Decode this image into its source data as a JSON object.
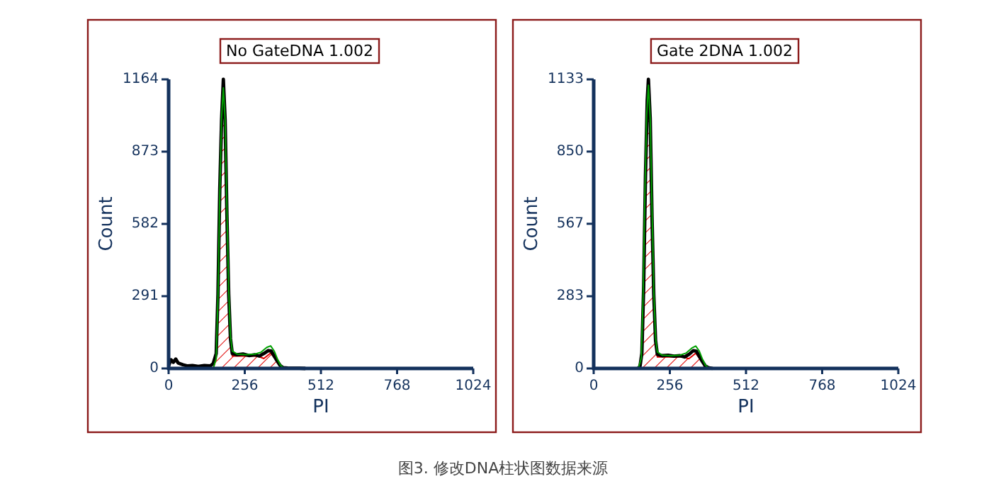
{
  "chart_data": [
    {
      "type": "line",
      "title": "No GateDNA 1.002",
      "xlabel": "PI",
      "ylabel": "Count",
      "xlim": [
        0,
        1024
      ],
      "xticks": [
        0,
        256,
        512,
        768,
        1024
      ],
      "ylim": [
        0,
        1164
      ],
      "yticks": [
        0,
        291,
        582,
        873,
        1164
      ],
      "annotations": [
        "图3. 修改DNA柱状图数据来源"
      ],
      "series": [
        {
          "type": "area",
          "color": "#e00000",
          "x": [
            150,
            160,
            166,
            172,
            178,
            184,
            190,
            196,
            202,
            208,
            214,
            300,
            320,
            343,
            360,
            380
          ],
          "values": [
            0,
            40,
            290,
            700,
            1010,
            1130,
            1000,
            650,
            320,
            120,
            50,
            50,
            40,
            62,
            35,
            0
          ]
        },
        {
          "color": "#000000",
          "x": [
            0,
            8,
            16,
            24,
            32,
            48,
            64,
            80,
            100,
            120,
            140,
            150,
            160,
            166,
            172,
            178,
            184,
            190,
            196,
            202,
            208,
            214,
            230,
            250,
            270,
            290,
            305,
            320,
            335,
            345,
            355,
            365,
            375,
            385,
            400,
            440,
            460
          ],
          "values": [
            10,
            35,
            25,
            38,
            22,
            15,
            10,
            12,
            8,
            12,
            10,
            20,
            60,
            300,
            720,
            1000,
            1164,
            1000,
            620,
            300,
            120,
            60,
            55,
            58,
            52,
            55,
            50,
            60,
            72,
            70,
            50,
            30,
            12,
            3,
            2,
            1,
            0
          ]
        },
        {
          "color": "#00a000",
          "x": [
            150,
            160,
            166,
            172,
            178,
            184,
            190,
            196,
            202,
            208,
            214,
            230,
            260,
            290,
            310,
            330,
            343,
            355,
            365,
            375,
            385,
            400
          ],
          "values": [
            0,
            40,
            290,
            700,
            1010,
            1130,
            1000,
            650,
            320,
            130,
            70,
            58,
            56,
            58,
            65,
            85,
            91,
            70,
            40,
            15,
            3,
            0
          ]
        }
      ]
    },
    {
      "type": "line",
      "title": "Gate 2DNA 1.002",
      "xlabel": "PI",
      "ylabel": "Count",
      "xlim": [
        0,
        1024
      ],
      "xticks": [
        0,
        256,
        512,
        768,
        1024
      ],
      "ylim": [
        0,
        1133
      ],
      "yticks": [
        0,
        283,
        567,
        850,
        1133
      ],
      "series": [
        {
          "type": "area",
          "color": "#e00000",
          "x": [
            150,
            160,
            166,
            172,
            178,
            184,
            190,
            196,
            202,
            208,
            214,
            300,
            320,
            343,
            360,
            380
          ],
          "values": [
            0,
            40,
            280,
            680,
            990,
            1110,
            980,
            640,
            310,
            110,
            45,
            45,
            38,
            60,
            32,
            0
          ]
        },
        {
          "color": "#000000",
          "x": [
            150,
            156,
            162,
            168,
            174,
            180,
            184,
            190,
            196,
            202,
            208,
            214,
            230,
            250,
            270,
            290,
            305,
            320,
            335,
            345,
            355,
            365,
            375,
            385,
            400
          ],
          "values": [
            0,
            10,
            60,
            320,
            750,
            1050,
            1133,
            980,
            600,
            290,
            110,
            55,
            50,
            52,
            48,
            50,
            45,
            55,
            70,
            68,
            48,
            28,
            10,
            3,
            0
          ]
        },
        {
          "color": "#00a000",
          "x": [
            150,
            160,
            166,
            172,
            178,
            184,
            190,
            196,
            202,
            208,
            214,
            230,
            260,
            290,
            310,
            330,
            343,
            355,
            365,
            375,
            385,
            400
          ],
          "values": [
            0,
            40,
            280,
            680,
            990,
            1110,
            980,
            640,
            310,
            120,
            65,
            52,
            50,
            52,
            60,
            80,
            88,
            68,
            38,
            14,
            3,
            0
          ]
        }
      ]
    }
  ]
}
